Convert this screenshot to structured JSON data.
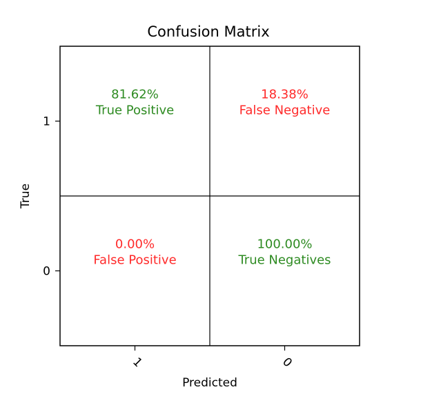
{
  "chart_data": {
    "type": "heatmap",
    "title": "Confusion Matrix",
    "xlabel": "Predicted",
    "ylabel": "True",
    "x_tick_labels": [
      "1",
      "0"
    ],
    "y_tick_labels": [
      "1",
      "0"
    ],
    "colors": {
      "correct": "#2e8b22",
      "incorrect": "#ff2a2a",
      "grid": "#000000",
      "background": "#ffffff"
    },
    "cells": [
      {
        "row": 0,
        "col": 0,
        "value": "81.62%",
        "label": "True Positive",
        "status": "correct"
      },
      {
        "row": 0,
        "col": 1,
        "value": "18.38%",
        "label": "False Negative",
        "status": "incorrect"
      },
      {
        "row": 1,
        "col": 0,
        "value": "0.00%",
        "label": "False Positive",
        "status": "incorrect"
      },
      {
        "row": 1,
        "col": 1,
        "value": "100.00%",
        "label": "True Negatives",
        "status": "correct"
      }
    ]
  }
}
